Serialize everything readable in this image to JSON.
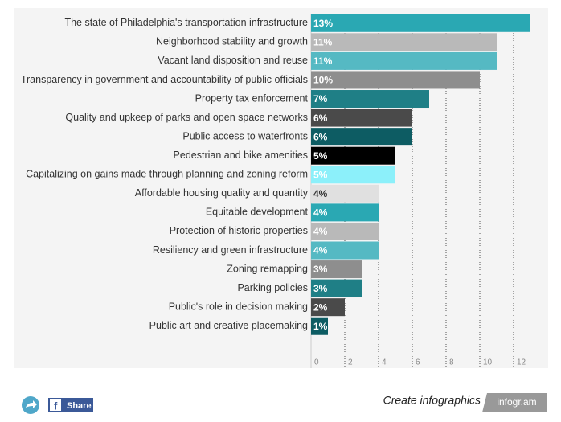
{
  "chart_data": {
    "type": "bar",
    "orientation": "horizontal",
    "categories": [
      "The state of Philadelphia's transportation infrastructure",
      "Neighborhood stability and growth",
      "Vacant land disposition and reuse",
      "Transparency in government and accountability of public officials",
      "Property tax enforcement",
      "Quality and upkeep of parks and open space networks",
      "Public access to waterfronts",
      "Pedestrian and bike amenities",
      "Capitalizing on gains made through planning and zoning reform",
      "Affordable housing quality and quantity",
      "Equitable development",
      "Protection of historic properties",
      "Resiliency and green infrastructure",
      "Zoning remapping",
      "Parking policies",
      "Public's role in decision making",
      "Public art and creative placemaking"
    ],
    "values": [
      13,
      11,
      11,
      10,
      7,
      6,
      6,
      5,
      5,
      4,
      4,
      4,
      4,
      3,
      3,
      2,
      1
    ],
    "value_labels": [
      "13%",
      "11%",
      "11%",
      "10%",
      "7%",
      "6%",
      "6%",
      "5%",
      "5%",
      "4%",
      "4%",
      "4%",
      "4%",
      "3%",
      "3%",
      "2%",
      "1%"
    ],
    "colors": [
      "#2aa8b3",
      "#b9b9b9",
      "#55b9c3",
      "#8e8e8e",
      "#1f7f86",
      "#4a4a4a",
      "#0d5c63",
      "#000000",
      "#8cf0fa",
      "#e0e0e0",
      "#2aa8b3",
      "#b9b9b9",
      "#55b9c3",
      "#8e8e8e",
      "#1f7f86",
      "#4a4a4a",
      "#0d5c63"
    ],
    "xlim": [
      0,
      14
    ],
    "xticks": [
      0,
      2,
      4,
      6,
      8,
      10,
      12
    ],
    "grid": true
  },
  "footer": {
    "share": "Share",
    "cta": "Create infographics",
    "brand": "infogr.am"
  }
}
